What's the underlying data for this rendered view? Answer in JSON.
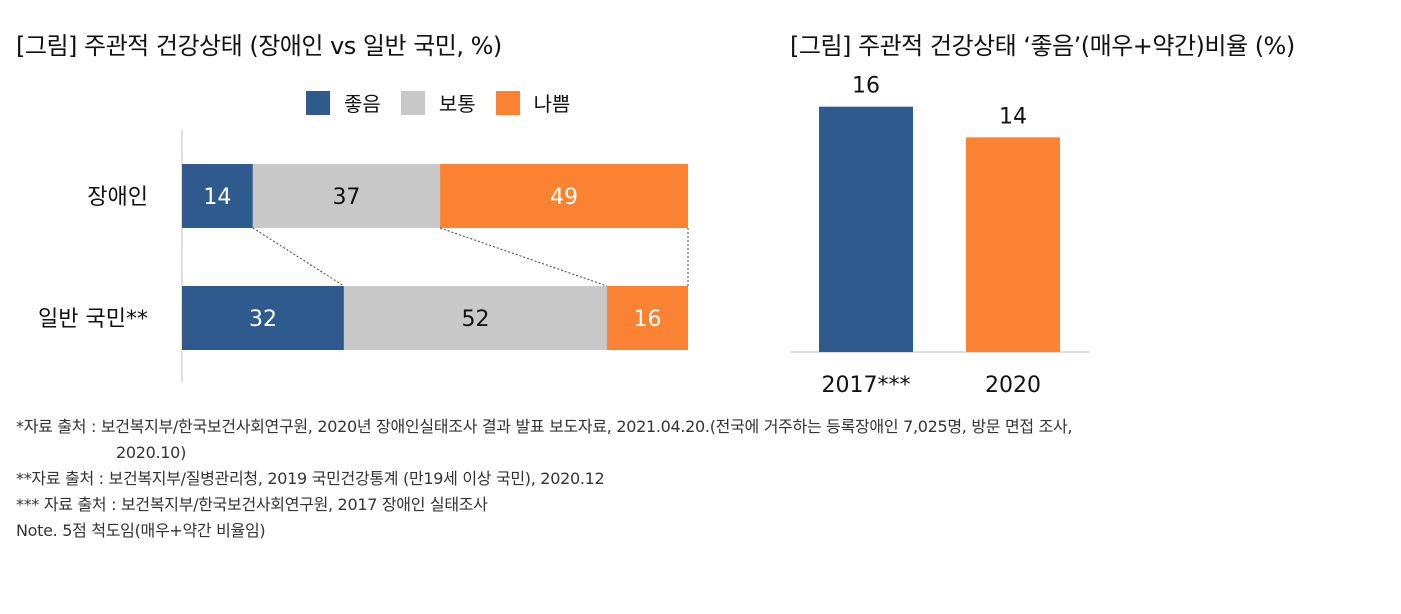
{
  "chart_data": [
    {
      "type": "bar",
      "orientation": "horizontal-stacked-100",
      "title": "[그림] 주관적 건강상태 (장애인 vs 일반 국민, %)",
      "categories": [
        "장애인",
        "일반 국민**"
      ],
      "series": [
        {
          "name": "좋음",
          "color": "#2e5a8e",
          "values": [
            14,
            32
          ]
        },
        {
          "name": "보통",
          "color": "#c8c8c8",
          "values": [
            37,
            52
          ]
        },
        {
          "name": "나쁨",
          "color": "#fb8233",
          "values": [
            49,
            16
          ]
        }
      ],
      "xlim": [
        0,
        100
      ],
      "legend_position": "top",
      "grid": false
    },
    {
      "type": "bar",
      "title": "[그림] 주관적 건강상태 ‘좋음’(매우+약간)비율 (%)",
      "categories": [
        "2017***",
        "2020"
      ],
      "values": [
        16,
        14
      ],
      "colors": [
        "#2e5a8e",
        "#fb8233"
      ],
      "ylim": [
        0,
        18
      ],
      "grid": false
    }
  ],
  "notes": [
    "*자료 출처 : 보건복지부/한국보건사회연구원, 2020년 장애인실태조사 결과 발표 보도자료, 2021.04.20.(전국에 거주하는 등록장애인 7,025명, 방문 면접 조사,",
    "2020.10)",
    "**자료 출처 : 보건복지부/질병관리청, 2019 국민건강통계 (만19세 이상 국민), 2020.12",
    "*** 자료 출처 : 보건복지부/한국보건사회연구원, 2017 장애인 실태조사",
    "Note. 5점 척도임(매우+약간 비율임)"
  ]
}
